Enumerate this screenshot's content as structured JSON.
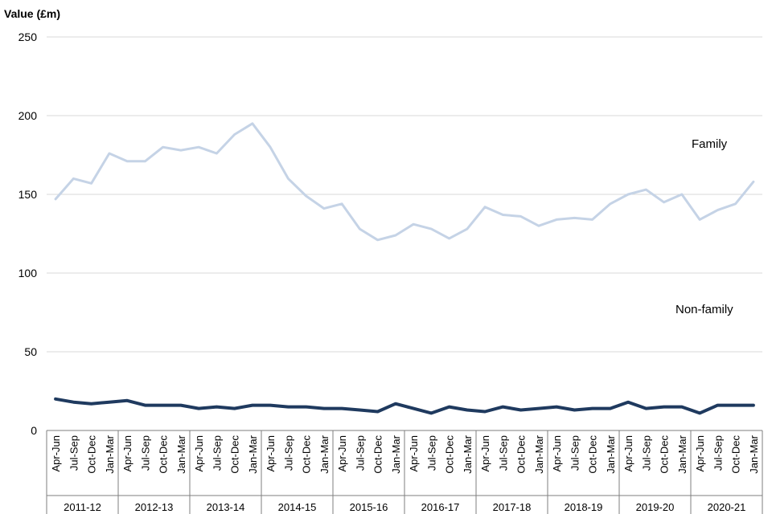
{
  "chart_data": {
    "type": "line",
    "ylabel": "Value (£m)",
    "ylim": [
      0,
      250
    ],
    "yticks": [
      0,
      50,
      100,
      150,
      200,
      250
    ],
    "grid": true,
    "quarters": [
      "Apr-Jun",
      "Jul-Sep",
      "Oct-Dec",
      "Jan-Mar"
    ],
    "years": [
      "2011-12",
      "2012-13",
      "2013-14",
      "2014-15",
      "2015-16",
      "2016-17",
      "2017-18",
      "2018-19",
      "2019-20",
      "2020-21"
    ],
    "series": [
      {
        "name": "Family",
        "color": "#c5d3e6",
        "values": [
          147,
          160,
          157,
          176,
          171,
          171,
          180,
          178,
          180,
          176,
          188,
          195,
          180,
          160,
          149,
          141,
          144,
          128,
          121,
          124,
          131,
          128,
          122,
          128,
          142,
          137,
          136,
          130,
          134,
          135,
          134,
          144,
          150,
          153,
          145,
          150,
          134,
          140,
          144,
          158
        ]
      },
      {
        "name": "Non-family",
        "color": "#1f3a5f",
        "values": [
          20,
          18,
          17,
          18,
          19,
          16,
          16,
          16,
          14,
          15,
          14,
          16,
          16,
          15,
          15,
          14,
          14,
          13,
          12,
          17,
          14,
          11,
          15,
          13,
          12,
          15,
          13,
          14,
          15,
          13,
          14,
          14,
          18,
          14,
          15,
          15,
          11,
          16,
          16,
          16
        ]
      }
    ]
  }
}
